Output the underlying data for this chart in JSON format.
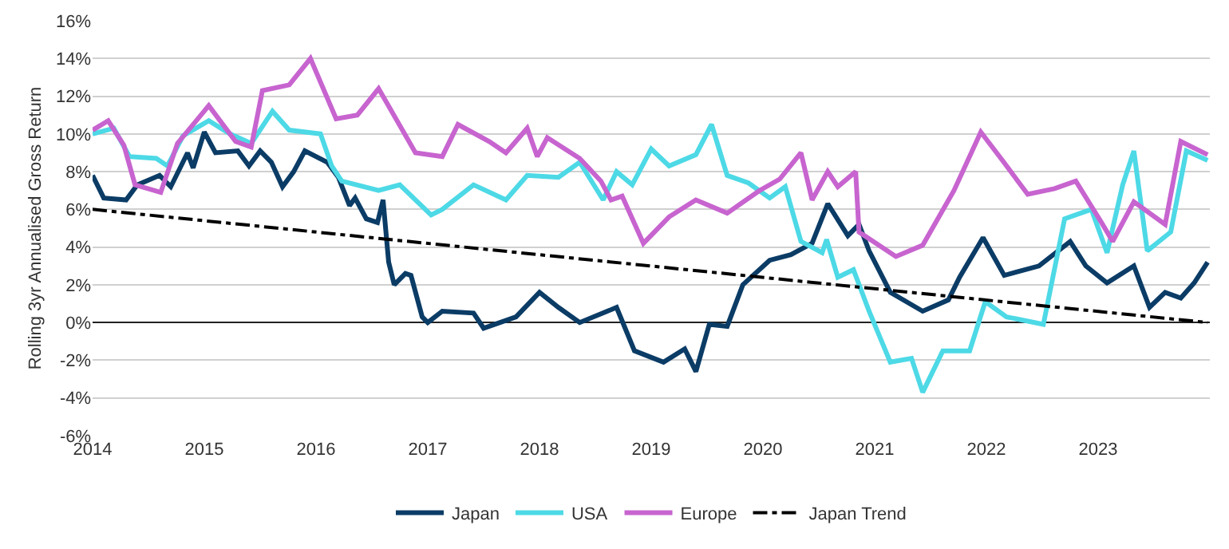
{
  "chart_data": {
    "type": "line",
    "ylabel": "Rolling 3yr Annualised Gross Return",
    "xlim": [
      2014,
      2024
    ],
    "xticks": [
      2014,
      2015,
      2016,
      2017,
      2018,
      2019,
      2020,
      2021,
      2022,
      2023
    ],
    "ylim": [
      -6,
      16
    ],
    "yticks": [
      {
        "value": -6,
        "label": "-6%"
      },
      {
        "value": -4,
        "label": "-4%"
      },
      {
        "value": -2,
        "label": "-2%"
      },
      {
        "value": 0,
        "label": "0%"
      },
      {
        "value": 2,
        "label": "2%"
      },
      {
        "value": 4,
        "label": "4%"
      },
      {
        "value": 6,
        "label": "6%"
      },
      {
        "value": 8,
        "label": "8%"
      },
      {
        "value": 10,
        "label": "10%"
      },
      {
        "value": 12,
        "label": "12%"
      },
      {
        "value": 14,
        "label": "14%"
      },
      {
        "value": 16,
        "label": "16%"
      }
    ],
    "grid": "y",
    "legend": "bottom",
    "marker": "none",
    "series": [
      {
        "name": "Japan",
        "color": "#0b3c66",
        "x": [
          2014.0,
          2014.1,
          2014.3,
          2014.4,
          2014.6,
          2014.7,
          2014.85,
          2014.9,
          2015.0,
          2015.1,
          2015.3,
          2015.4,
          2015.5,
          2015.6,
          2015.7,
          2015.8,
          2015.9,
          2016.1,
          2016.2,
          2016.3,
          2016.35,
          2016.45,
          2016.55,
          2016.6,
          2016.65,
          2016.7,
          2016.8,
          2016.85,
          2016.95,
          2017.0,
          2017.13,
          2017.41,
          2017.5,
          2017.79,
          2018.0,
          2018.17,
          2018.36,
          2018.69,
          2018.85,
          2019.11,
          2019.3,
          2019.4,
          2019.52,
          2019.68,
          2019.82,
          2020.06,
          2020.25,
          2020.44,
          2020.58,
          2020.76,
          2020.86,
          2020.95,
          2021.14,
          2021.43,
          2021.66,
          2021.76,
          2021.97,
          2022.16,
          2022.47,
          2022.75,
          2022.89,
          2023.08,
          2023.32,
          2023.46,
          2023.6,
          2023.74,
          2023.86,
          2023.98
        ],
        "values": [
          7.8,
          6.6,
          6.5,
          7.3,
          7.8,
          7.2,
          9.0,
          8.2,
          10.1,
          9.0,
          9.1,
          8.3,
          9.1,
          8.5,
          7.2,
          8.0,
          9.1,
          8.5,
          7.7,
          6.2,
          6.6,
          5.5,
          5.3,
          6.5,
          3.2,
          2.0,
          2.6,
          2.5,
          0.3,
          0.0,
          0.6,
          0.5,
          -0.3,
          0.3,
          1.6,
          0.8,
          0.0,
          0.8,
          -1.5,
          -2.1,
          -1.4,
          -2.6,
          -0.1,
          -0.2,
          2.0,
          3.3,
          3.6,
          4.2,
          6.3,
          4.6,
          5.2,
          3.8,
          1.6,
          0.6,
          1.2,
          2.4,
          4.5,
          2.5,
          3.0,
          4.3,
          3.0,
          2.1,
          3.0,
          0.8,
          1.6,
          1.3,
          2.1,
          3.2
        ]
      },
      {
        "name": "USA",
        "color": "#4dd9e6",
        "x": [
          2014.0,
          2014.19,
          2014.33,
          2014.57,
          2014.67,
          2014.81,
          2015.04,
          2015.23,
          2015.42,
          2015.61,
          2015.76,
          2016.04,
          2016.14,
          2016.23,
          2016.56,
          2016.75,
          2017.03,
          2017.13,
          2017.41,
          2017.7,
          2017.89,
          2018.17,
          2018.36,
          2018.57,
          2018.69,
          2018.83,
          2019.0,
          2019.16,
          2019.4,
          2019.54,
          2019.68,
          2019.87,
          2020.06,
          2020.2,
          2020.34,
          2020.53,
          2020.57,
          2020.67,
          2020.81,
          2020.95,
          2021.14,
          2021.33,
          2021.43,
          2021.61,
          2021.85,
          2021.99,
          2022.18,
          2022.51,
          2022.7,
          2022.94,
          2023.08,
          2023.22,
          2023.32,
          2023.44,
          2023.65,
          2023.79,
          2023.98
        ],
        "values": [
          10.0,
          10.3,
          8.8,
          8.7,
          8.3,
          9.9,
          10.7,
          10.0,
          9.5,
          11.2,
          10.2,
          10.0,
          8.3,
          7.5,
          7.0,
          7.3,
          5.7,
          6.0,
          7.3,
          6.5,
          7.8,
          7.7,
          8.5,
          6.5,
          8.0,
          7.3,
          9.2,
          8.3,
          8.9,
          10.5,
          7.8,
          7.4,
          6.6,
          7.2,
          4.3,
          3.7,
          4.4,
          2.4,
          2.8,
          0.6,
          -2.1,
          -1.9,
          -3.7,
          -1.5,
          -1.5,
          1.1,
          0.3,
          -0.1,
          5.5,
          6.0,
          3.7,
          7.3,
          9.1,
          3.8,
          4.8,
          9.1,
          8.6
        ]
      },
      {
        "name": "Europe",
        "color": "#c764cf",
        "x": [
          2014.0,
          2014.14,
          2014.28,
          2014.38,
          2014.61,
          2014.76,
          2015.04,
          2015.28,
          2015.42,
          2015.52,
          2015.76,
          2015.95,
          2016.18,
          2016.37,
          2016.56,
          2016.89,
          2017.13,
          2017.27,
          2017.55,
          2017.7,
          2017.89,
          2017.98,
          2018.07,
          2018.36,
          2018.55,
          2018.64,
          2018.74,
          2018.93,
          2019.16,
          2019.4,
          2019.68,
          2019.97,
          2020.15,
          2020.34,
          2020.44,
          2020.58,
          2020.67,
          2020.83,
          2020.86,
          2021.19,
          2021.43,
          2021.71,
          2021.95,
          2022.13,
          2022.37,
          2022.61,
          2022.8,
          2023.03,
          2023.13,
          2023.32,
          2023.6,
          2023.74,
          2023.98
        ],
        "values": [
          10.2,
          10.7,
          9.4,
          7.3,
          6.9,
          9.5,
          11.5,
          9.6,
          9.3,
          12.3,
          12.6,
          14.0,
          10.8,
          11.0,
          12.4,
          9.0,
          8.8,
          10.5,
          9.6,
          9.0,
          10.3,
          8.8,
          9.8,
          8.7,
          7.5,
          6.5,
          6.7,
          4.2,
          5.6,
          6.5,
          5.8,
          7.0,
          7.6,
          9.0,
          6.5,
          8.0,
          7.2,
          8.0,
          4.8,
          3.5,
          4.1,
          7.0,
          10.1,
          8.7,
          6.8,
          7.1,
          7.5,
          5.3,
          4.3,
          6.4,
          5.2,
          9.6,
          8.9
        ]
      },
      {
        "name": "Japan Trend",
        "color": "#000000",
        "line_style": "dashed",
        "x": [
          2014.0,
          2023.98
        ],
        "values": [
          6.0,
          0.0
        ]
      }
    ]
  }
}
